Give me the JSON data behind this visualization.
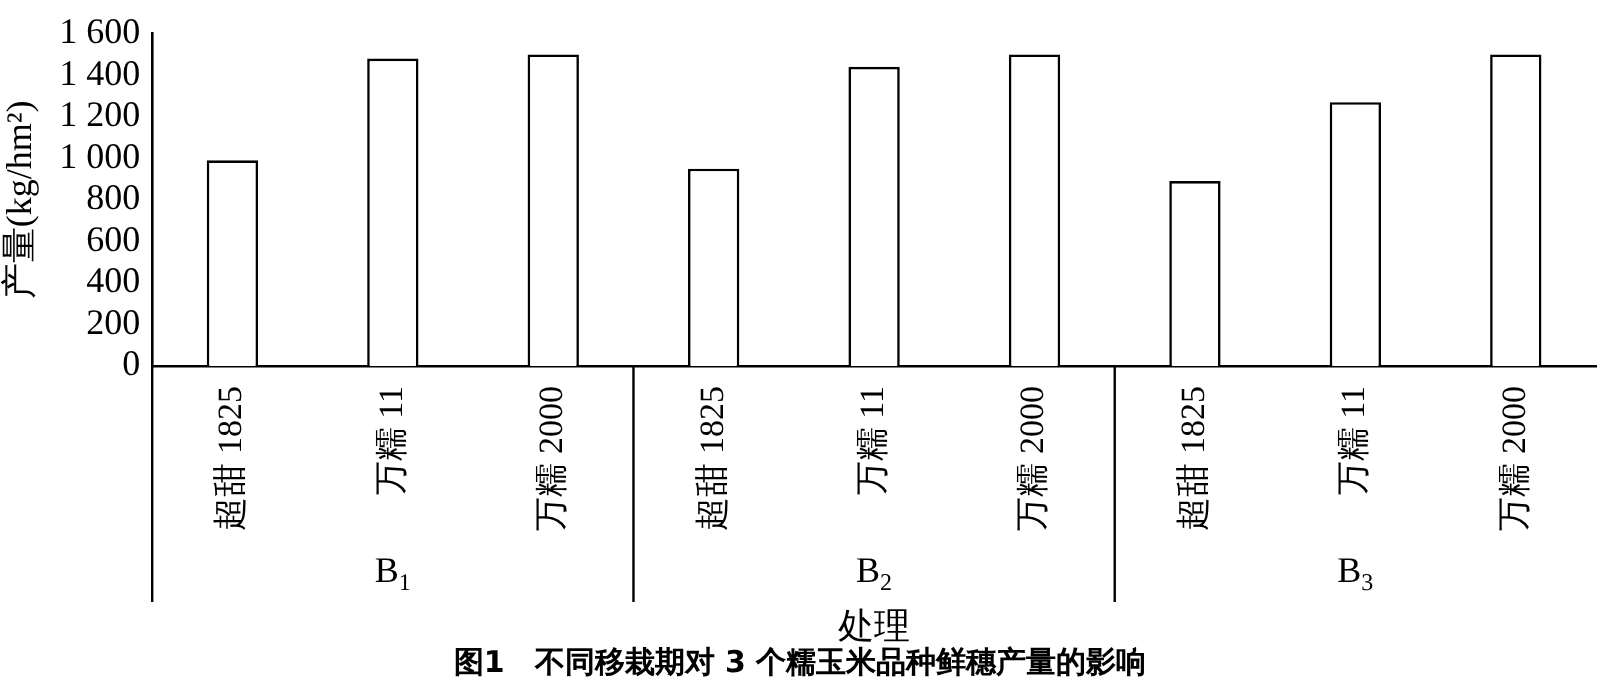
{
  "chart_data": {
    "type": "bar",
    "title": "图1　不同移栽期对 3 个糯玉米品种鲜穗产量的影响",
    "xlabel": "处理",
    "ylabel": "产量(kg/hm²)",
    "categories": [
      "超甜 1825",
      "万糯 11",
      "万糯 2000",
      "超甜 1825",
      "万糯 11",
      "万糯 2000",
      "超甜 1825",
      "万糯 11",
      "万糯 2000"
    ],
    "values": [
      990,
      1480,
      1500,
      950,
      1440,
      1500,
      890,
      1270,
      1500
    ],
    "color": "#ffffff",
    "annotations": [
      "B$_{1}$",
      "B$_{2}$",
      "B$_{3}$"
    ],
    "ylim": [
      0,
      1600
    ],
    "yticks": [
      0,
      200,
      400,
      600,
      800,
      {
        "value": 1000,
        "label": "1 000"
      },
      {
        "value": 1200,
        "label": "1 200"
      },
      {
        "value": 1400,
        "label": "1 400"
      },
      {
        "value": 1600,
        "label": "1 600"
      }
    ],
    "grid": false,
    "legend": false
  }
}
